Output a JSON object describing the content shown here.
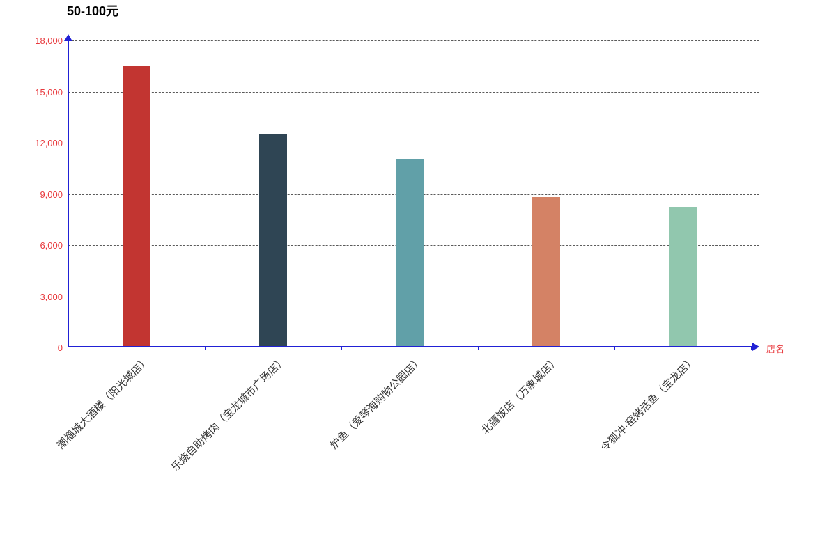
{
  "chart_data": {
    "type": "bar",
    "title": "50-100元",
    "categories": [
      "潮福城大酒楼（阳光城店）",
      "乐烧自助烤肉（宝龙城市广场店）",
      "炉鱼（爱琴海购物公园店）",
      "北疆饭店（万象城店）",
      "令狐冲·窑烤活鱼（宝龙店）"
    ],
    "values": [
      16500,
      12500,
      11000,
      8800,
      8200
    ],
    "bar_colors": [
      "#c23531",
      "#2f4554",
      "#61a0a8",
      "#d48265",
      "#91c7ae"
    ],
    "xlabel": "店名",
    "ylabel": "",
    "ylim": [
      0,
      18000
    ],
    "ytick_interval": 3000,
    "ytick_labels": [
      "0",
      "3,000",
      "6,000",
      "9,000",
      "12,000",
      "15,000",
      "18,000"
    ],
    "grid": true,
    "gridline_style": "dashed",
    "legend": false
  },
  "colors": {
    "axis_line": "#2121d5",
    "axis_tick_label": "#e8393d",
    "gridline": "#5a5a5a",
    "title_text": "#000000",
    "category_label": "#333333",
    "background": "#ffffff"
  }
}
